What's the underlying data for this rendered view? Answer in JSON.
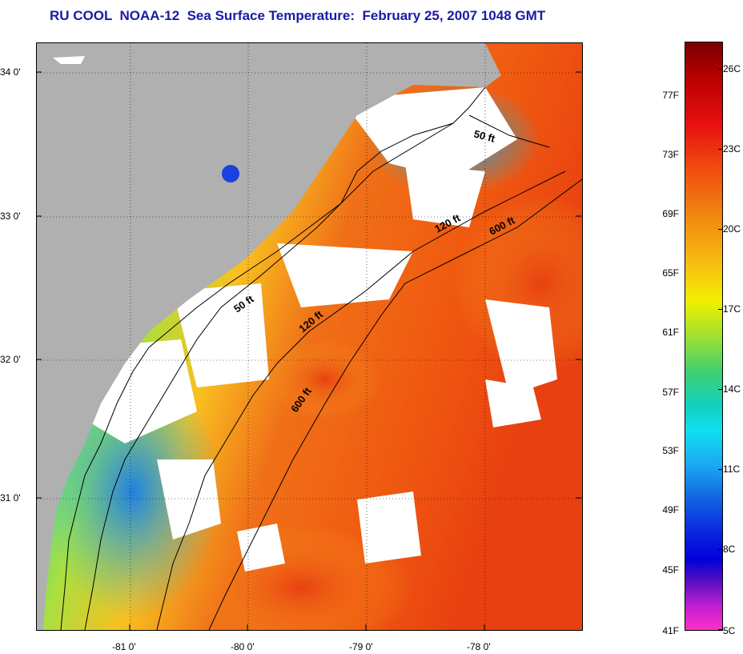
{
  "title": "RU COOL  NOAA-12  Sea Surface Temperature:  February 25, 2007 1048 GMT",
  "map": {
    "lat_labels": [
      "34 0'",
      "33 0'",
      "32 0'",
      "31 0'"
    ],
    "lon_labels": [
      "-81 0'",
      "-80 0'",
      "-79 0'",
      "-78 0'"
    ],
    "contour_labels": [
      "50 ft",
      "120 ft",
      "600 ft",
      "50 ft",
      "120 ft",
      "600 ft"
    ],
    "land_color": "#b0b0b0",
    "cloud_color": "#ffffff"
  },
  "colorbar": {
    "fahrenheit_labels": [
      "77F",
      "73F",
      "69F",
      "65F",
      "61F",
      "57F",
      "53F",
      "49F",
      "45F",
      "41F"
    ],
    "celsius_labels": [
      "26C",
      "23C",
      "20C",
      "17C",
      "14C",
      "11C",
      "8C",
      "5C"
    ]
  }
}
